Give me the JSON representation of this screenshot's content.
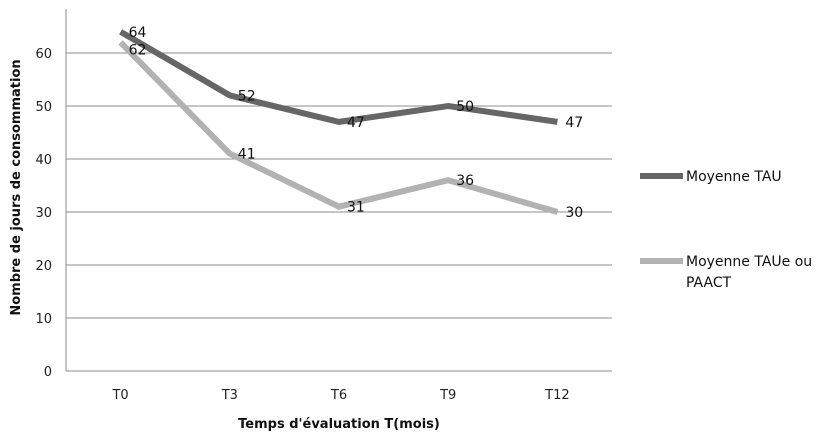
{
  "chart_data": {
    "type": "line",
    "categories": [
      "T0",
      "T3",
      "T6",
      "T9",
      "T12"
    ],
    "series": [
      {
        "name": "Moyenne TAU",
        "values": [
          64,
          52,
          47,
          50,
          47
        ],
        "color": "#666666"
      },
      {
        "name": "Moyenne TAUe ou PAACT",
        "values": [
          62,
          41,
          31,
          36,
          30
        ],
        "color": "#b2b2b2"
      }
    ],
    "xlabel": "Temps d'évaluation T(mois)",
    "ylabel": "Nombre de jours de consommation",
    "ylim": [
      0,
      70
    ],
    "yticks": [
      0,
      10,
      20,
      30,
      40,
      50,
      60
    ],
    "grid": true,
    "legend": "right"
  }
}
